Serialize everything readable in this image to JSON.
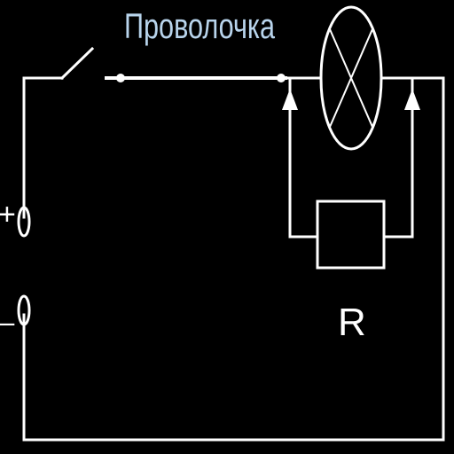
{
  "labels": {
    "wire": "Проволочка",
    "resistor": "R",
    "terminal_plus": "+",
    "terminal_minus": "_"
  }
}
